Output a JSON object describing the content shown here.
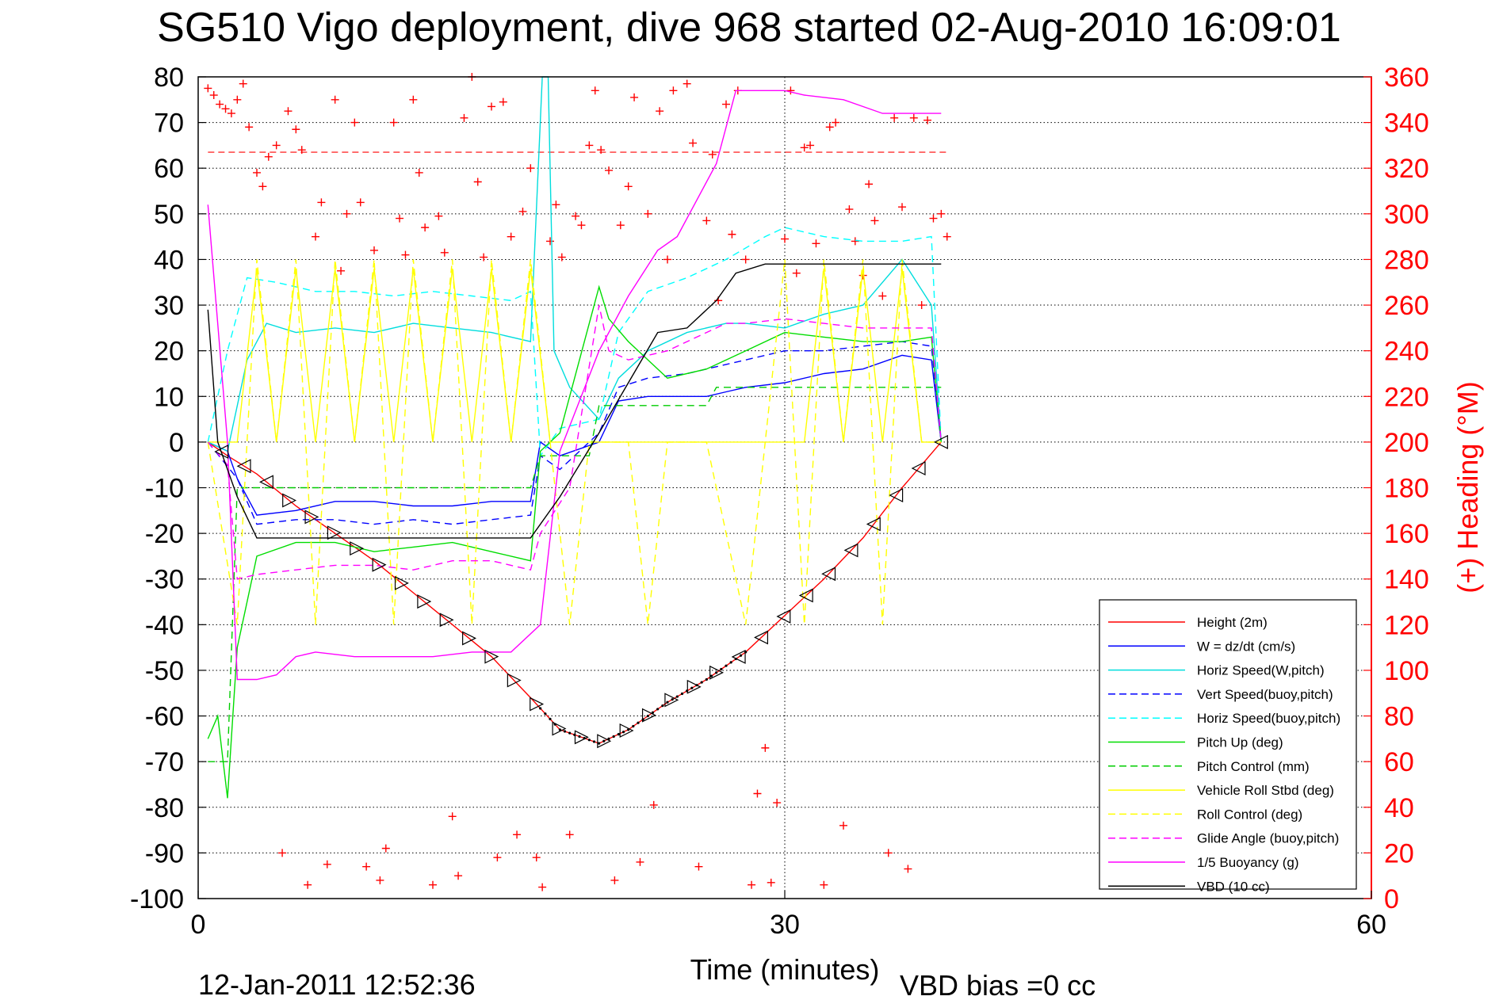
{
  "chart_data": {
    "type": "line",
    "title": "SG510 Vigo deployment, dive 968 started 02-Aug-2010 16:09:01",
    "xlabel": "Time (minutes)",
    "ylabel": "",
    "ylabel_right": "(+) Heading (°M)",
    "xlim": [
      0,
      60
    ],
    "ylim": [
      -100,
      80
    ],
    "ylim_right": [
      0,
      360
    ],
    "x_ticks": [
      "0",
      "30",
      "60"
    ],
    "y_ticks": [
      "-100",
      "-90",
      "-80",
      "-70",
      "-60",
      "-50",
      "-40",
      "-30",
      "-20",
      "-10",
      "0",
      "10",
      "20",
      "30",
      "40",
      "50",
      "60",
      "70",
      "80"
    ],
    "y_ticks_right": [
      "0",
      "20",
      "40",
      "60",
      "80",
      "100",
      "120",
      "140",
      "160",
      "180",
      "200",
      "220",
      "240",
      "260",
      "280",
      "300",
      "320",
      "340",
      "360"
    ],
    "grid": true,
    "legend_position": "bottom-right",
    "series": [
      {
        "name": "Height (2m)",
        "color": "#ff0000",
        "dash": "solid",
        "x": [
          0.5,
          1.5,
          3,
          5,
          7,
          9,
          11,
          13,
          15,
          17,
          18.5,
          20.5,
          22,
          24,
          26,
          28,
          30,
          32,
          34,
          36,
          38
        ],
        "y": [
          0,
          -3,
          -7,
          -14,
          -20,
          -26,
          -33,
          -40,
          -47,
          -56,
          -63,
          -66,
          -63,
          -57,
          -52,
          -46,
          -38,
          -30,
          -21,
          -10,
          0
        ]
      },
      {
        "name": "W = dz/dt (cm/s)",
        "color": "#0000ff",
        "dash": "solid",
        "x": [
          0.5,
          1.5,
          2,
          3,
          5,
          7,
          9,
          11,
          13,
          15,
          17,
          17.5,
          18.5,
          20.5,
          21.5,
          23,
          25,
          26,
          27,
          28,
          30,
          32,
          34,
          36,
          37.5,
          38
        ],
        "y": [
          0,
          -2,
          -8,
          -16,
          -15,
          -13,
          -13,
          -14,
          -14,
          -13,
          -13,
          0,
          -3,
          0,
          9,
          10,
          10,
          10,
          11,
          12,
          13,
          15,
          16,
          19,
          18,
          0
        ]
      },
      {
        "name": "Horiz Speed(W,pitch)",
        "color": "#00dddd",
        "dash": "solid",
        "x": [
          0.5,
          1.5,
          2.5,
          3.5,
          5,
          7,
          9,
          11,
          13,
          15,
          17,
          17.6,
          17.9,
          18.2,
          19,
          20.5,
          21.5,
          23,
          25,
          27,
          28,
          30,
          32,
          34,
          36,
          37.5,
          38
        ],
        "y": [
          0,
          -2,
          18,
          26,
          24,
          25,
          24,
          26,
          25,
          24,
          22,
          80,
          80,
          20,
          12,
          5,
          14,
          20,
          24,
          26,
          26,
          25,
          28,
          30,
          40,
          30,
          0
        ]
      },
      {
        "name": "Vert Speed(buoy,pitch)",
        "color": "#0000ff",
        "dash": "dashed",
        "x": [
          0.5,
          2,
          3,
          5,
          7,
          9,
          11,
          13,
          15,
          17,
          17.5,
          18.5,
          20.5,
          21.5,
          23,
          25,
          27,
          28,
          30,
          32,
          34,
          36,
          37.5,
          38
        ],
        "y": [
          0,
          -8,
          -18,
          -17,
          -17,
          -18,
          -17,
          -18,
          -17,
          -16,
          -3,
          -6,
          2,
          12,
          14,
          15,
          17,
          18,
          20,
          20,
          21,
          22,
          21,
          0
        ]
      },
      {
        "name": "Horiz Speed(buoy,pitch)",
        "color": "#00ffff",
        "dash": "dashed",
        "x": [
          0.5,
          1.5,
          2.5,
          4,
          6,
          8,
          10,
          12,
          14,
          16,
          17,
          17.5,
          18.5,
          20.5,
          21.5,
          23,
          25,
          27,
          29,
          30,
          32,
          34,
          36,
          37.5,
          38
        ],
        "y": [
          0,
          20,
          36,
          35,
          33,
          33,
          32,
          33,
          32,
          31,
          33,
          -3,
          3,
          5,
          24,
          33,
          36,
          40,
          45,
          47,
          45,
          44,
          44,
          45,
          0
        ]
      },
      {
        "name": "Pitch Up (deg)",
        "color": "#00dd00",
        "dash": "solid",
        "x": [
          0.5,
          1,
          1.5,
          2,
          2.5,
          3,
          5,
          7,
          9,
          11,
          13,
          15,
          17,
          17.5,
          18.5,
          20.5,
          21,
          22,
          24,
          26,
          27,
          28,
          30,
          32,
          34,
          36,
          37.5,
          38
        ],
        "y": [
          -65,
          -60,
          -78,
          -45,
          -35,
          -25,
          -22,
          -22,
          -24,
          -23,
          -22,
          -24,
          -26,
          -2,
          2,
          34,
          27,
          22,
          14,
          16,
          18,
          20,
          24,
          23,
          22,
          22,
          23,
          0
        ]
      },
      {
        "name": "Pitch Control (mm)",
        "color": "#00cc00",
        "dash": "dashed",
        "x": [
          0.5,
          1.5,
          2,
          17,
          17.5,
          20,
          20.5,
          26,
          26.5,
          38
        ],
        "y": [
          -70,
          -70,
          -10,
          -10,
          -3,
          -3,
          8,
          8,
          12,
          12
        ]
      },
      {
        "name": "Vehicle Roll Stbd (deg)",
        "color": "#ffff00",
        "dash": "solid",
        "x": [
          0.5,
          2,
          3,
          4,
          5,
          6,
          7,
          8,
          9,
          10,
          11,
          12,
          13,
          14,
          15,
          16,
          17,
          18,
          19,
          20,
          21,
          22,
          23,
          24,
          25,
          26,
          27,
          28,
          29,
          30,
          31,
          32,
          33,
          34,
          35,
          36,
          37,
          38
        ],
        "y": [
          0,
          0,
          38,
          0,
          38,
          0,
          38,
          0,
          38,
          0,
          38,
          0,
          38,
          0,
          38,
          0,
          38,
          0,
          0,
          0,
          0,
          0,
          0,
          0,
          0,
          0,
          0,
          0,
          0,
          0,
          0,
          38,
          0,
          38,
          0,
          38,
          0,
          0
        ]
      },
      {
        "name": "Roll Control (deg)",
        "color": "#ffff00",
        "dash": "dashed",
        "x": [
          0.5,
          2,
          3,
          4,
          5,
          6,
          7,
          8,
          9,
          10,
          11,
          12,
          13,
          14,
          15,
          16,
          17,
          18,
          19,
          20,
          21,
          22,
          23,
          24,
          25,
          26,
          27,
          28,
          29,
          30,
          31,
          32,
          33,
          34,
          35,
          36,
          37,
          38
        ],
        "y": [
          0,
          -40,
          40,
          0,
          40,
          -40,
          40,
          0,
          40,
          -40,
          40,
          0,
          40,
          -40,
          40,
          0,
          40,
          0,
          -40,
          0,
          0,
          0,
          -40,
          0,
          0,
          0,
          -20,
          -40,
          0,
          40,
          -40,
          40,
          0,
          40,
          -40,
          40,
          0,
          0
        ]
      },
      {
        "name": "Glide Angle (buoy,pitch)",
        "color": "#ff00ff",
        "dash": "dashed",
        "x": [
          0.5,
          1.5,
          2,
          3,
          5,
          7,
          9,
          11,
          13,
          15,
          17,
          17.5,
          19,
          20.5,
          21,
          22,
          24,
          26,
          27,
          28,
          30,
          32,
          34,
          36,
          37.5,
          38
        ],
        "y": [
          0,
          -5,
          -30,
          -29,
          -28,
          -27,
          -27,
          -28,
          -26,
          -26,
          -28,
          -20,
          -10,
          30,
          20,
          18,
          20,
          24,
          26,
          26,
          27,
          26,
          25,
          25,
          25,
          0
        ]
      },
      {
        "name": "1/5 Buoyancy (g)",
        "color": "#ff00ff",
        "dash": "solid",
        "x": [
          0.5,
          1.5,
          2,
          3,
          4,
          5,
          6,
          8,
          10,
          12,
          14,
          16,
          17.5,
          18.5,
          20.5,
          22,
          23.5,
          24.5,
          26.5,
          27.5,
          29,
          30,
          31,
          33,
          35,
          36,
          37,
          38
        ],
        "y": [
          52,
          0,
          -52,
          -52,
          -51,
          -47,
          -46,
          -47,
          -47,
          -47,
          -46,
          -46,
          -40,
          -2,
          20,
          32,
          42,
          45,
          61,
          77,
          77,
          77,
          76,
          75,
          72,
          72,
          72,
          72
        ]
      },
      {
        "name": "VBD (10 cc)",
        "color": "#000000",
        "dash": "solid",
        "x": [
          0.5,
          1,
          2,
          3,
          5,
          8,
          11,
          14,
          17,
          18.5,
          20.5,
          22,
          23.5,
          25,
          26.5,
          27.5,
          29,
          30,
          32,
          34,
          36,
          38
        ],
        "y": [
          29,
          0,
          -12,
          -21,
          -21,
          -21,
          -21,
          -21,
          -21,
          -12,
          2,
          13,
          24,
          25,
          31,
          37,
          39,
          39,
          39,
          39,
          39,
          39
        ]
      }
    ],
    "heading_series": {
      "name": "(+) Heading",
      "color": "#ff0000",
      "marker": "+",
      "reference_value": 327,
      "x": [
        0.5,
        0.8,
        1.1,
        1.4,
        1.7,
        2.0,
        2.3,
        2.6,
        3.0,
        3.3,
        3.6,
        4.0,
        4.3,
        4.6,
        5.0,
        5.3,
        5.6,
        6.0,
        6.3,
        6.6,
        7.0,
        7.3,
        7.6,
        8.0,
        8.3,
        8.6,
        9.0,
        9.3,
        9.6,
        10.0,
        10.3,
        10.6,
        11.0,
        11.3,
        11.6,
        12.0,
        12.3,
        12.6,
        13.0,
        13.3,
        13.6,
        14.0,
        14.3,
        14.6,
        15.0,
        15.3,
        15.6,
        16.0,
        16.3,
        16.6,
        17.0,
        17.3,
        17.6,
        18.0,
        18.3,
        18.6,
        19.0,
        19.3,
        19.6,
        20.0,
        20.3,
        20.6,
        21.0,
        21.3,
        21.6,
        22.0,
        22.3,
        22.6,
        23.0,
        23.3,
        23.6,
        24.0,
        24.3,
        24.6,
        25.0,
        25.3,
        25.6,
        26.0,
        26.3,
        26.6,
        27.0,
        27.3,
        27.6,
        28.0,
        28.3,
        28.6,
        29.0,
        29.3,
        29.6,
        30.0,
        30.3,
        30.6,
        31.0,
        31.3,
        31.6,
        32.0,
        32.3,
        32.6,
        33.0,
        33.3,
        33.6,
        34.0,
        34.3,
        34.6,
        35.0,
        35.3,
        35.6,
        36.0,
        36.3,
        36.6,
        37.0,
        37.3,
        37.6,
        38.0,
        38.3
      ],
      "y": [
        355,
        352,
        348,
        346,
        344,
        350,
        357,
        338,
        318,
        312,
        325,
        330,
        20,
        345,
        337,
        328,
        6,
        290,
        305,
        15,
        350,
        275,
        300,
        340,
        305,
        14,
        284,
        8,
        22,
        340,
        298,
        282,
        350,
        318,
        294,
        6,
        299,
        283,
        36,
        10,
        342,
        360,
        314,
        281,
        347,
        18,
        349,
        290,
        28,
        301,
        320,
        18,
        5,
        288,
        304,
        281,
        28,
        299,
        295,
        330,
        354,
        328,
        319,
        8,
        295,
        312,
        351,
        16,
        300,
        41,
        345,
        280,
        354,
        361,
        357,
        331,
        14,
        297,
        326,
        262,
        348,
        291,
        354,
        280,
        6,
        46,
        66,
        7,
        42,
        289,
        354,
        274,
        329,
        330,
        287,
        6,
        338,
        340,
        32,
        302,
        288,
        273,
        313,
        297,
        264,
        20,
        342,
        303,
        13,
        342,
        260,
        341,
        298,
        300,
        290
      ]
    },
    "annotations": {
      "timestamp": "12-Jan-2011 12:52:36",
      "vbd_bias": "VBD bias =0 cc"
    }
  }
}
